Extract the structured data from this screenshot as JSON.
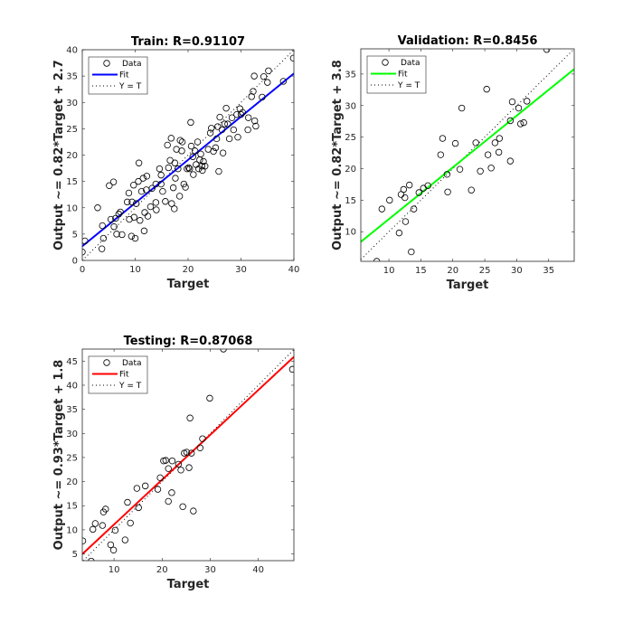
{
  "chart_data": [
    {
      "type": "scatter",
      "title": "Train: R=0.91107",
      "xlabel": "Target",
      "ylabel": "Output ~= 0.82*Target + 2.7",
      "xlim": [
        0,
        40
      ],
      "ylim": [
        0,
        40
      ],
      "xticks": [
        0,
        10,
        20,
        30,
        40
      ],
      "yticks": [
        0,
        5,
        10,
        15,
        20,
        25,
        30,
        35,
        40
      ],
      "fit": {
        "slope": 0.82,
        "intercept": 2.7,
        "color": "#0000ff"
      },
      "legend": {
        "placement": "top-left",
        "entries": [
          "Data",
          "Fit",
          "Y = T"
        ]
      },
      "points": [
        [
          0,
          1.6
        ],
        [
          0.5,
          3.7
        ],
        [
          2.9,
          10
        ],
        [
          3.7,
          2.2
        ],
        [
          3.8,
          6.6
        ],
        [
          4,
          4.2
        ],
        [
          5.1,
          14.2
        ],
        [
          5.9,
          14.9
        ],
        [
          5.4,
          7.8
        ],
        [
          6,
          6.4
        ],
        [
          6.5,
          5
        ],
        [
          6.3,
          8
        ],
        [
          6.9,
          8.8
        ],
        [
          7.2,
          9.2
        ],
        [
          7.5,
          4.9
        ],
        [
          8.5,
          11.1
        ],
        [
          8.8,
          12.8
        ],
        [
          8.9,
          7.8
        ],
        [
          9.4,
          11.1
        ],
        [
          9.7,
          14.3
        ],
        [
          9.3,
          4.6
        ],
        [
          9.8,
          8.2
        ],
        [
          10,
          4.2
        ],
        [
          10.2,
          10.8
        ],
        [
          10.7,
          18.5
        ],
        [
          10.6,
          15
        ],
        [
          10.9,
          7.6
        ],
        [
          11.2,
          13.1
        ],
        [
          11.5,
          15.6
        ],
        [
          11.7,
          5.6
        ],
        [
          11.8,
          9.1
        ],
        [
          12.1,
          13.4
        ],
        [
          12.4,
          8.4
        ],
        [
          12.2,
          16
        ],
        [
          12.9,
          10.2
        ],
        [
          13.2,
          13.7
        ],
        [
          13.9,
          14.5
        ],
        [
          13.9,
          11
        ],
        [
          14,
          9.6
        ],
        [
          14.6,
          17.4
        ],
        [
          14.9,
          16.2
        ],
        [
          15.2,
          13.1
        ],
        [
          14.9,
          14.5
        ],
        [
          15.7,
          11.2
        ],
        [
          16.1,
          21.9
        ],
        [
          16.3,
          17.6
        ],
        [
          16.6,
          19
        ],
        [
          16.8,
          23.2
        ],
        [
          16.9,
          10.8
        ],
        [
          17.2,
          13.8
        ],
        [
          17.4,
          9.8
        ],
        [
          17.5,
          18.5
        ],
        [
          17.6,
          15.6
        ],
        [
          17.8,
          21.1
        ],
        [
          18.1,
          17.4
        ],
        [
          18.4,
          12.2
        ],
        [
          18.5,
          22.8
        ],
        [
          18.8,
          20.8
        ],
        [
          18.9,
          22.5
        ],
        [
          19.2,
          14.5
        ],
        [
          19.5,
          13.9
        ],
        [
          19.8,
          17.4
        ],
        [
          20.1,
          17.6
        ],
        [
          20.3,
          17.4
        ],
        [
          20.5,
          26.2
        ],
        [
          20.6,
          21.7
        ],
        [
          20.9,
          19.7
        ],
        [
          21,
          16.3
        ],
        [
          21.3,
          20.8
        ],
        [
          21.5,
          18.2
        ],
        [
          21.8,
          22.5
        ],
        [
          22,
          17.4
        ],
        [
          22.2,
          19.1
        ],
        [
          22.4,
          20.2
        ],
        [
          22.6,
          17.9
        ],
        [
          22.7,
          17.1
        ],
        [
          22.9,
          18.8
        ],
        [
          23.2,
          17.9
        ],
        [
          23.8,
          21.1
        ],
        [
          24.2,
          24.2
        ],
        [
          24.4,
          25.1
        ],
        [
          24.8,
          20.7
        ],
        [
          25.2,
          21.4
        ],
        [
          25.4,
          23.1
        ],
        [
          25.6,
          25.4
        ],
        [
          25.8,
          16.9
        ],
        [
          26,
          27.2
        ],
        [
          26.4,
          24.8
        ],
        [
          26.6,
          20.4
        ],
        [
          26.9,
          25.9
        ],
        [
          27.2,
          28.9
        ],
        [
          27.5,
          25.9
        ],
        [
          27.8,
          23.1
        ],
        [
          28.3,
          27.1
        ],
        [
          28.6,
          24.8
        ],
        [
          29.2,
          27.7
        ],
        [
          29.4,
          23.4
        ],
        [
          29.8,
          28.8
        ],
        [
          30,
          27.7
        ],
        [
          30.3,
          28.1
        ],
        [
          31.3,
          24.8
        ],
        [
          31.4,
          27.1
        ],
        [
          32,
          31.1
        ],
        [
          32.3,
          32.1
        ],
        [
          32.6,
          26.5
        ],
        [
          32.8,
          25.5
        ],
        [
          32.5,
          35
        ],
        [
          34,
          31
        ],
        [
          34.3,
          34.9
        ],
        [
          35,
          33.8
        ],
        [
          35.2,
          36
        ],
        [
          38,
          34
        ],
        [
          39.9,
          38.4
        ]
      ]
    },
    {
      "type": "scatter",
      "title": "Validation: R=0.8456",
      "xlabel": "Target",
      "ylabel": "Output ~= 0.82*Target + 3.8",
      "xlim": [
        5.6,
        39
      ],
      "ylim": [
        5.3,
        39
      ],
      "xticks": [
        10,
        15,
        20,
        25,
        30,
        35
      ],
      "yticks": [
        10,
        15,
        20,
        25,
        30,
        35
      ],
      "fit": {
        "slope": 0.82,
        "intercept": 3.8,
        "color": "#00ff00"
      },
      "legend": {
        "placement": "top-left",
        "entries": [
          "Data",
          "Fit",
          "Y = T"
        ]
      },
      "points": [
        [
          8.1,
          5.3
        ],
        [
          8.9,
          13.6
        ],
        [
          10.1,
          15
        ],
        [
          11.6,
          9.8
        ],
        [
          11.9,
          15.9
        ],
        [
          12.3,
          16.7
        ],
        [
          12.5,
          15.4
        ],
        [
          12.6,
          11.6
        ],
        [
          13.2,
          17.4
        ],
        [
          13.5,
          6.8
        ],
        [
          13.9,
          13.6
        ],
        [
          14.7,
          16.2
        ],
        [
          15.4,
          16.9
        ],
        [
          16.1,
          17.3
        ],
        [
          18.1,
          22.2
        ],
        [
          18.4,
          24.8
        ],
        [
          19.1,
          19.1
        ],
        [
          19.2,
          16.3
        ],
        [
          20.4,
          24
        ],
        [
          21.1,
          19.9
        ],
        [
          21.4,
          29.6
        ],
        [
          22.9,
          16.6
        ],
        [
          23.6,
          24.1
        ],
        [
          24.3,
          19.6
        ],
        [
          25.3,
          32.6
        ],
        [
          25.5,
          22.2
        ],
        [
          26,
          20.1
        ],
        [
          26.6,
          24.1
        ],
        [
          27.2,
          22.6
        ],
        [
          27.3,
          24.8
        ],
        [
          29,
          27.6
        ],
        [
          29,
          21.2
        ],
        [
          29.3,
          30.6
        ],
        [
          30.3,
          29.6
        ],
        [
          30.6,
          27.1
        ],
        [
          31.1,
          27.3
        ],
        [
          31.6,
          30.7
        ],
        [
          34.7,
          38.9
        ]
      ]
    },
    {
      "type": "scatter",
      "title": "Testing: R=0.87068",
      "xlabel": "Target",
      "ylabel": "Output ~= 0.93*Target + 1.8",
      "xlim": [
        3.4,
        47.4
      ],
      "ylim": [
        3.6,
        47.5
      ],
      "xticks": [
        10,
        20,
        30,
        40
      ],
      "yticks": [
        5,
        10,
        15,
        20,
        25,
        30,
        35,
        40,
        45
      ],
      "fit": {
        "slope": 0.93,
        "intercept": 1.8,
        "color": "#ff0000"
      },
      "legend": {
        "placement": "top-left",
        "entries": [
          "Data",
          "Fit",
          "Y = T"
        ]
      },
      "points": [
        [
          3.5,
          7.7
        ],
        [
          5.25,
          3.5
        ],
        [
          5.6,
          10.1
        ],
        [
          6.1,
          11.3
        ],
        [
          7.6,
          10.9
        ],
        [
          7.8,
          13.7
        ],
        [
          8.25,
          14.3
        ],
        [
          9.3,
          6.9
        ],
        [
          9.9,
          5.8
        ],
        [
          10.25,
          9.9
        ],
        [
          12.3,
          7.9
        ],
        [
          12.8,
          15.7
        ],
        [
          13.4,
          11.4
        ],
        [
          14.75,
          18.6
        ],
        [
          15.1,
          14.6
        ],
        [
          16.5,
          19.1
        ],
        [
          19.1,
          18.4
        ],
        [
          19.6,
          20.8
        ],
        [
          20.3,
          24.3
        ],
        [
          20.75,
          24.4
        ],
        [
          21.3,
          22.7
        ],
        [
          21.3,
          15.9
        ],
        [
          22,
          17.7
        ],
        [
          22.1,
          24.3
        ],
        [
          23.4,
          23.6
        ],
        [
          23.9,
          22.4
        ],
        [
          24.3,
          14.8
        ],
        [
          24.6,
          25.9
        ],
        [
          25.1,
          26.1
        ],
        [
          25.6,
          22.9
        ],
        [
          25.8,
          33.2
        ],
        [
          26.1,
          25.9
        ],
        [
          26.5,
          13.9
        ],
        [
          27.9,
          27
        ],
        [
          28.4,
          28.9
        ],
        [
          29.9,
          37.3
        ],
        [
          32.75,
          47.5
        ],
        [
          47.1,
          43.3
        ]
      ]
    }
  ]
}
